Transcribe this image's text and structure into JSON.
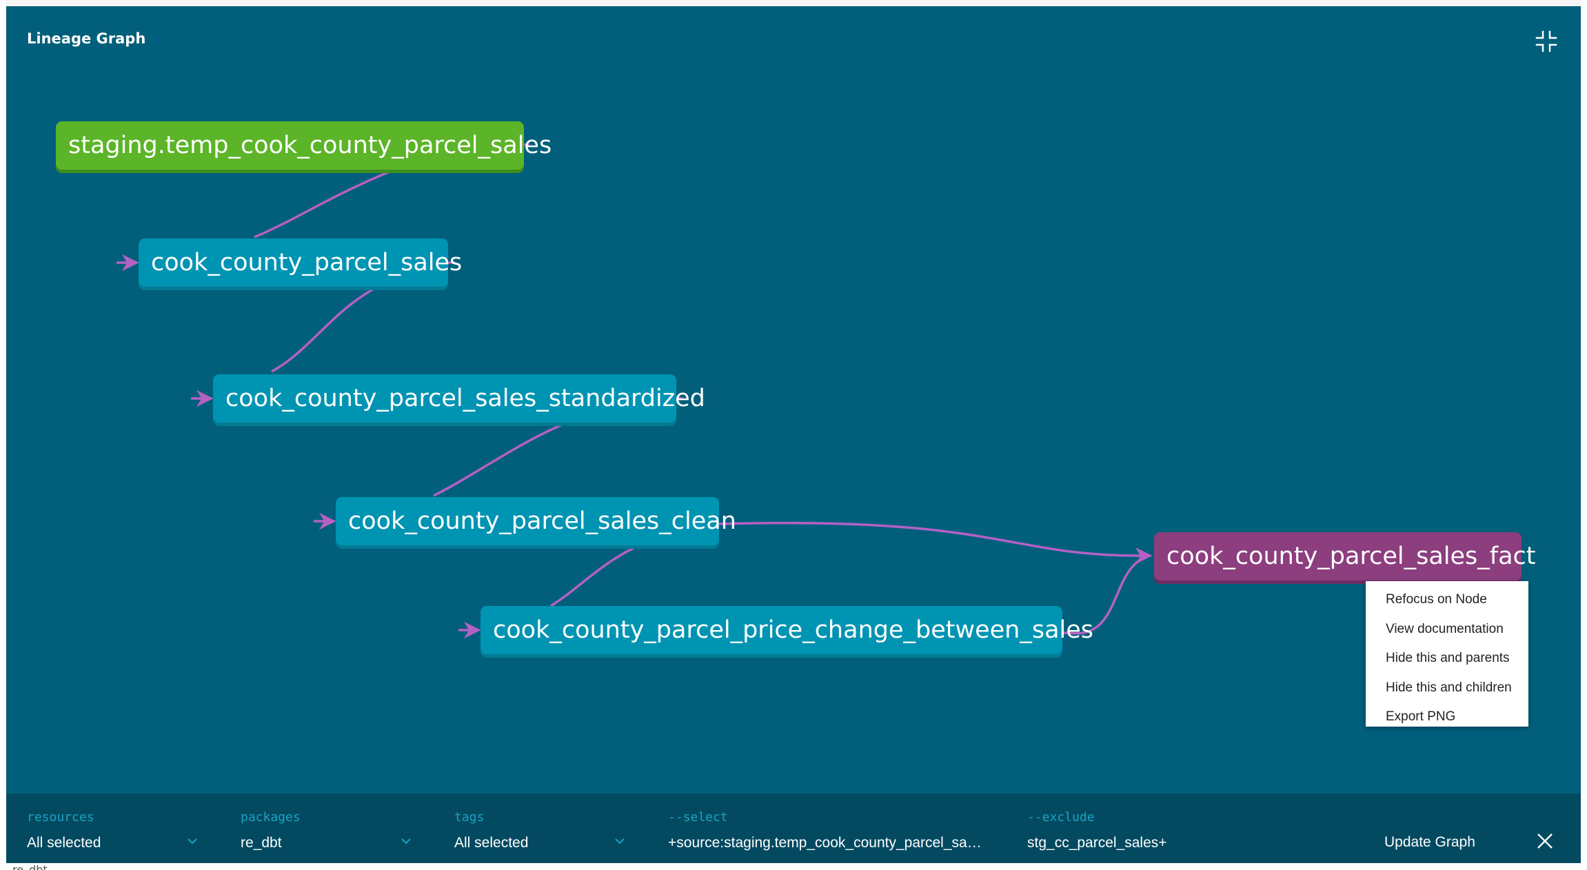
{
  "panel": {
    "title": "Lineage Graph",
    "minimize_icon": "collapse-arrows-icon"
  },
  "nodes": [
    {
      "id": "source",
      "label": "staging.temp_cook_county_parcel_sales",
      "type": "source",
      "color": "#5cb528"
    },
    {
      "id": "sales",
      "label": "cook_county_parcel_sales",
      "type": "model",
      "color": "#0094b3"
    },
    {
      "id": "standardized",
      "label": "cook_county_parcel_sales_standardized",
      "type": "model",
      "color": "#0094b3"
    },
    {
      "id": "clean",
      "label": "cook_county_parcel_sales_clean",
      "type": "model",
      "color": "#0094b3"
    },
    {
      "id": "price_change",
      "label": "cook_county_parcel_price_change_between_sales",
      "type": "model",
      "color": "#0094b3"
    },
    {
      "id": "fact",
      "label": "cook_county_parcel_sales_fact",
      "type": "model-selected",
      "color": "#8c3e7e"
    }
  ],
  "edges": [
    {
      "from": "source",
      "to": "sales"
    },
    {
      "from": "sales",
      "to": "standardized"
    },
    {
      "from": "standardized",
      "to": "clean"
    },
    {
      "from": "clean",
      "to": "price_change"
    },
    {
      "from": "clean",
      "to": "fact"
    },
    {
      "from": "price_change",
      "to": "fact"
    }
  ],
  "edge_color": "#b561c3",
  "context_menu": {
    "items": [
      "Refocus on Node",
      "View documentation",
      "Hide this and parents",
      "Hide this and children",
      "Export PNG"
    ]
  },
  "footer": {
    "resources": {
      "label": "resources",
      "value": "All selected"
    },
    "packages": {
      "label": "packages",
      "value": "re_dbt"
    },
    "tags": {
      "label": "tags",
      "value": "All selected"
    },
    "select": {
      "label": "--select",
      "value": "+source:staging.temp_cook_county_parcel_sa…"
    },
    "exclude": {
      "label": "--exclude",
      "value": "stg_cc_parcel_sales+"
    },
    "update_label": "Update Graph",
    "close_icon": "close-icon",
    "chevron_icon": "chevron-down-icon"
  },
  "background": {
    "breadcrumb": "re_dbt"
  },
  "colors": {
    "panel_bg": "#015f7b",
    "footer_bg": "#034a61",
    "filter_label": "#1aa3c2"
  }
}
